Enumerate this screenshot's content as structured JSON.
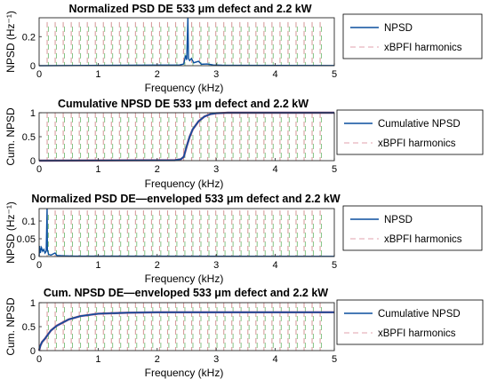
{
  "colors": {
    "npsd_line": "#0a4f9e",
    "harmonic_red": "#d9a0a0",
    "harmonic_green": "#86c486",
    "harmonic_pink": "#e8b5bd",
    "cumulative_overlay": "#8a4a86",
    "axis": "#262626",
    "legend_border": "#000000"
  },
  "chart_data": [
    {
      "type": "line",
      "title": "Normalized PSD DE 533 μm defect and 2.2 kW",
      "xlabel": "Frequency (kHz)",
      "ylabel": "NPSD (Hz⁻¹)",
      "xlim": [
        0,
        5
      ],
      "ylim": [
        0,
        0.33
      ],
      "xticks": [
        "0",
        "1",
        "2",
        "3",
        "4",
        "5"
      ],
      "yticks": [
        {
          "value": 0,
          "label": "0"
        },
        {
          "value": 0.2,
          "label": "0.2"
        }
      ],
      "legend_position": "outside-right",
      "legend": [
        "NPSD",
        "xBPFI harmonics"
      ],
      "harmonic_spacing_khz": 0.136,
      "harmonic_count": 35,
      "harmonic_top": 0.3,
      "series": [
        {
          "name": "NPSD",
          "points": [
            [
              0,
              0
            ],
            [
              2.38,
              0.005
            ],
            [
              2.45,
              0.012
            ],
            [
              2.48,
              0.07
            ],
            [
              2.5,
              0.04
            ],
            [
              2.52,
              0.33
            ],
            [
              2.53,
              0.05
            ],
            [
              2.55,
              0.035
            ],
            [
              2.58,
              0.05
            ],
            [
              2.62,
              0.02
            ],
            [
              2.7,
              0.03
            ],
            [
              2.75,
              0.01
            ],
            [
              2.85,
              0.012
            ],
            [
              2.95,
              0.005
            ],
            [
              3.1,
              0.003
            ],
            [
              5,
              0.001
            ]
          ]
        }
      ]
    },
    {
      "type": "line",
      "title": "Cumulative NPSD DE 533 μm defect and 2.2 kW",
      "xlabel": "Frequency (kHz)",
      "ylabel": "Cum. NPSD",
      "xlim": [
        0,
        5
      ],
      "ylim": [
        0,
        1
      ],
      "xticks": [
        "0",
        "1",
        "2",
        "3",
        "4",
        "5"
      ],
      "yticks": [
        {
          "value": 0,
          "label": "0"
        },
        {
          "value": 0.5,
          "label": "0.5"
        },
        {
          "value": 1,
          "label": "1"
        }
      ],
      "legend_position": "outside-right",
      "legend": [
        "Cumulative NPSD",
        "xBPFI harmonics"
      ],
      "harmonic_spacing_khz": 0.136,
      "harmonic_count": 35,
      "harmonic_top": 1,
      "series": [
        {
          "name": "Cumulative NPSD",
          "points": [
            [
              0,
              0
            ],
            [
              2.3,
              0.01
            ],
            [
              2.4,
              0.03
            ],
            [
              2.45,
              0.08
            ],
            [
              2.5,
              0.3
            ],
            [
              2.55,
              0.5
            ],
            [
              2.6,
              0.65
            ],
            [
              2.7,
              0.82
            ],
            [
              2.8,
              0.92
            ],
            [
              2.9,
              0.97
            ],
            [
              3.0,
              0.99
            ],
            [
              3.2,
              1.0
            ],
            [
              5,
              1.0
            ]
          ]
        }
      ]
    },
    {
      "type": "line",
      "title": "Normalized PSD DE—enveloped 533 μm defect and 2.2 kW",
      "xlabel": "Frequency (kHz)",
      "ylabel": "NPSD (Hz⁻¹)",
      "xlim": [
        0,
        5
      ],
      "ylim": [
        0,
        0.135
      ],
      "xticks": [
        "0",
        "1",
        "2",
        "3",
        "4",
        "5"
      ],
      "yticks": [
        {
          "value": 0,
          "label": "0"
        },
        {
          "value": 0.05,
          "label": "0.05"
        },
        {
          "value": 0.1,
          "label": "0.1"
        }
      ],
      "legend_position": "outside-right",
      "legend": [
        "NPSD",
        "xBPFI harmonics"
      ],
      "harmonic_spacing_khz": 0.136,
      "harmonic_count": 35,
      "harmonic_top": 0.13,
      "series": [
        {
          "name": "NPSD",
          "points": [
            [
              0,
              0
            ],
            [
              0.01,
              0.03
            ],
            [
              0.02,
              0.01
            ],
            [
              0.04,
              0.025
            ],
            [
              0.06,
              0.015
            ],
            [
              0.08,
              0.02
            ],
            [
              0.1,
              0.01
            ],
            [
              0.12,
              0.015
            ],
            [
              0.135,
              0.135
            ],
            [
              0.14,
              0.02
            ],
            [
              0.16,
              0.006
            ],
            [
              0.2,
              0.004
            ],
            [
              0.27,
              0.01
            ],
            [
              0.3,
              0.003
            ],
            [
              0.4,
              0.002
            ],
            [
              0.6,
              0.001
            ],
            [
              5,
              0.0005
            ]
          ]
        }
      ]
    },
    {
      "type": "line",
      "title": "Cum. NPSD DE—enveloped 533 μm defect and 2.2 kW",
      "xlabel": "Frequency (kHz)",
      "ylabel": "Cum. NPSD",
      "xlim": [
        0,
        5
      ],
      "ylim": [
        0,
        1
      ],
      "xticks": [
        "0",
        "1",
        "2",
        "3",
        "4",
        "5"
      ],
      "yticks": [
        {
          "value": 0,
          "label": "0"
        },
        {
          "value": 0.5,
          "label": "0.5"
        },
        {
          "value": 1,
          "label": "1"
        }
      ],
      "legend_position": "outside-right",
      "legend": [
        "Cumulative NPSD",
        "xBPFI harmonics"
      ],
      "harmonic_spacing_khz": 0.136,
      "harmonic_count": 35,
      "harmonic_top": 1,
      "series": [
        {
          "name": "Cumulative NPSD",
          "points": [
            [
              0,
              0
            ],
            [
              0.02,
              0.1
            ],
            [
              0.05,
              0.18
            ],
            [
              0.1,
              0.25
            ],
            [
              0.14,
              0.32
            ],
            [
              0.2,
              0.42
            ],
            [
              0.3,
              0.52
            ],
            [
              0.5,
              0.65
            ],
            [
              0.7,
              0.72
            ],
            [
              1.0,
              0.77
            ],
            [
              1.5,
              0.79
            ],
            [
              2,
              0.8
            ],
            [
              3,
              0.8
            ],
            [
              5,
              0.8
            ]
          ]
        }
      ]
    }
  ]
}
